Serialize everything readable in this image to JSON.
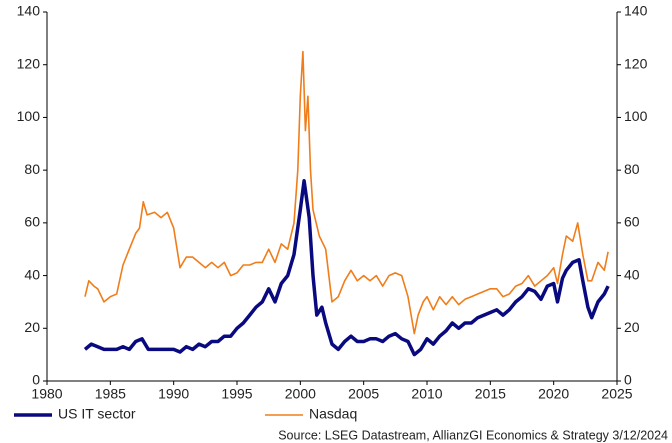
{
  "chart_data": {
    "type": "line",
    "xlim": [
      1980,
      2025
    ],
    "xticks": [
      1980,
      1985,
      1990,
      1995,
      2000,
      2005,
      2010,
      2015,
      2020,
      2025
    ],
    "ylim": [
      0,
      140
    ],
    "yticks": [
      0,
      20,
      40,
      60,
      80,
      100,
      120,
      140
    ],
    "y2lim": [
      0,
      140
    ],
    "y2ticks": [
      0,
      20,
      40,
      60,
      80,
      100,
      120,
      140
    ],
    "source": "Source: LSEG Datastream, AllianzGI Economics & Strategy 3/12/2024",
    "legend": "bottom",
    "series": [
      {
        "name": "US IT sector",
        "color": "#0a0a80",
        "x": [
          1983,
          1983.5,
          1984,
          1984.5,
          1985,
          1985.5,
          1986,
          1986.5,
          1987,
          1987.5,
          1988,
          1988.5,
          1989,
          1989.5,
          1990,
          1990.5,
          1991,
          1991.5,
          1992,
          1992.5,
          1993,
          1993.5,
          1994,
          1994.5,
          1995,
          1995.5,
          1996,
          1996.5,
          1997,
          1997.5,
          1998,
          1998.5,
          1999,
          1999.5,
          2000,
          2000.3,
          2000.7,
          2001,
          2001.3,
          2001.7,
          2002,
          2002.5,
          2003,
          2003.5,
          2004,
          2004.5,
          2005,
          2005.5,
          2006,
          2006.5,
          2007,
          2007.5,
          2008,
          2008.5,
          2009,
          2009.5,
          2010,
          2010.5,
          2011,
          2011.5,
          2012,
          2012.5,
          2013,
          2013.5,
          2014,
          2014.5,
          2015,
          2015.5,
          2016,
          2016.5,
          2017,
          2017.5,
          2018,
          2018.5,
          2019,
          2019.5,
          2020,
          2020.3,
          2020.7,
          2021,
          2021.5,
          2022,
          2022.3,
          2022.7,
          2023,
          2023.5,
          2024,
          2024.3
        ],
        "values": [
          12,
          14,
          13,
          12,
          12,
          12,
          13,
          12,
          15,
          16,
          12,
          12,
          12,
          12,
          12,
          11,
          13,
          12,
          14,
          13,
          15,
          15,
          17,
          17,
          20,
          22,
          25,
          28,
          30,
          35,
          30,
          37,
          40,
          48,
          65,
          76,
          62,
          40,
          25,
          28,
          22,
          14,
          12,
          15,
          17,
          15,
          15,
          16,
          16,
          15,
          17,
          18,
          16,
          15,
          10,
          12,
          16,
          14,
          17,
          19,
          22,
          20,
          22,
          22,
          24,
          25,
          26,
          27,
          25,
          27,
          30,
          32,
          35,
          34,
          31,
          36,
          37,
          30,
          39,
          42,
          45,
          46,
          38,
          28,
          24,
          30,
          33,
          36
        ]
      },
      {
        "name": "Nasdaq",
        "color": "#f07d1a",
        "axis": "y2",
        "x": [
          1983,
          1983.3,
          1983.7,
          1984,
          1984.5,
          1985,
          1985.5,
          1986,
          1986.5,
          1987,
          1987.3,
          1987.6,
          1987.9,
          1988.5,
          1989,
          1989.5,
          1990,
          1990.5,
          1991,
          1991.5,
          1992,
          1992.5,
          1993,
          1993.5,
          1994,
          1994.5,
          1995,
          1995.5,
          1996,
          1996.5,
          1997,
          1997.5,
          1998,
          1998.5,
          1999,
          1999.5,
          1999.8,
          2000,
          2000.2,
          2000.4,
          2000.6,
          2000.8,
          2001,
          2001.5,
          2002,
          2002.5,
          2003,
          2003.5,
          2004,
          2004.5,
          2005,
          2005.5,
          2006,
          2006.5,
          2007,
          2007.5,
          2008,
          2008.5,
          2009,
          2009.3,
          2009.7,
          2010,
          2010.5,
          2011,
          2011.5,
          2012,
          2012.5,
          2013,
          2013.5,
          2014,
          2014.5,
          2015,
          2015.5,
          2016,
          2016.5,
          2017,
          2017.5,
          2018,
          2018.5,
          2019,
          2019.5,
          2020,
          2020.3,
          2020.7,
          2021,
          2021.5,
          2021.9,
          2022.3,
          2022.7,
          2023,
          2023.5,
          2024,
          2024.3
        ],
        "values": [
          32,
          38,
          36,
          35,
          30,
          32,
          33,
          44,
          50,
          56,
          58,
          68,
          63,
          64,
          62,
          64,
          58,
          43,
          47,
          47,
          45,
          43,
          45,
          43,
          45,
          40,
          41,
          44,
          44,
          45,
          45,
          50,
          45,
          52,
          50,
          60,
          80,
          108,
          125,
          95,
          108,
          80,
          65,
          55,
          50,
          30,
          32,
          38,
          42,
          38,
          40,
          38,
          40,
          36,
          40,
          41,
          40,
          32,
          18,
          25,
          30,
          32,
          27,
          32,
          29,
          32,
          29,
          31,
          32,
          33,
          34,
          35,
          35,
          32,
          33,
          36,
          37,
          40,
          36,
          38,
          40,
          43,
          37,
          48,
          55,
          53,
          60,
          48,
          38,
          38,
          45,
          42,
          49
        ]
      }
    ]
  }
}
